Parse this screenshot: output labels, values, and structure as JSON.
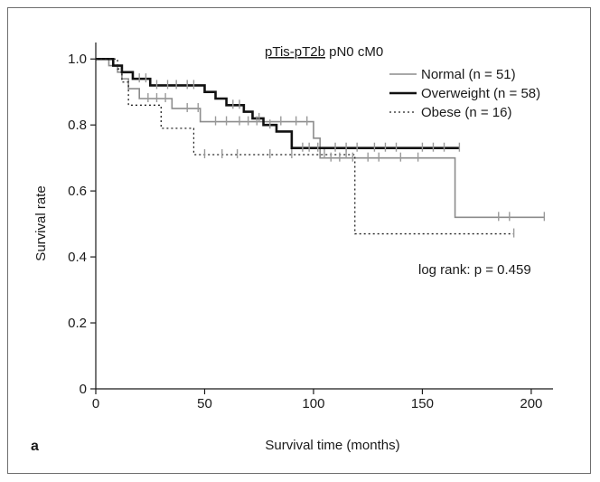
{
  "chart_data": {
    "type": "line",
    "step": true,
    "panel_label": "a",
    "title_underlined": "pTis-pT2b",
    "title_rest": " pN0 cM0",
    "xlabel": "Survival time (months)",
    "ylabel": "Survival rate",
    "xlim": [
      0,
      210
    ],
    "ylim": [
      0,
      1.05
    ],
    "x_ticks": [
      0,
      50,
      100,
      150,
      200
    ],
    "x_tick_labels": [
      "0",
      "50",
      "100",
      "150",
      "200"
    ],
    "y_ticks": [
      0,
      0.2,
      0.4,
      0.6,
      0.8,
      1.0
    ],
    "y_tick_labels": [
      "0",
      "0.2",
      "0.4",
      "0.6",
      "0.8",
      "1.0"
    ],
    "annotation": "log rank: p = 0.459",
    "grid": false,
    "legend_position": "top-right",
    "series": [
      {
        "name": "Normal (n = 51)",
        "style": "thin-gray",
        "color": "#8c8c8c",
        "x": [
          0,
          6,
          10,
          12,
          15,
          20,
          35,
          48,
          57,
          78,
          100,
          103,
          165,
          206
        ],
        "y": [
          1.0,
          0.98,
          0.96,
          0.94,
          0.91,
          0.88,
          0.85,
          0.81,
          0.81,
          0.81,
          0.76,
          0.7,
          0.52,
          0.52
        ],
        "censored": [
          24,
          28,
          32,
          42,
          47,
          55,
          60,
          66,
          70,
          74,
          85,
          92,
          97,
          108,
          112,
          118,
          125,
          130,
          140,
          148,
          185,
          190,
          206
        ]
      },
      {
        "name": "Overweight (n = 58)",
        "style": "thick-black",
        "color": "#111111",
        "x": [
          0,
          8,
          12,
          17,
          25,
          47,
          50,
          55,
          60,
          68,
          72,
          77,
          83,
          90,
          167
        ],
        "y": [
          1.0,
          0.98,
          0.96,
          0.94,
          0.92,
          0.92,
          0.9,
          0.88,
          0.86,
          0.84,
          0.82,
          0.8,
          0.78,
          0.73,
          0.73
        ],
        "censored": [
          20,
          23,
          28,
          33,
          37,
          42,
          45,
          63,
          66,
          75,
          80,
          95,
          98,
          102,
          110,
          115,
          120,
          128,
          133,
          138,
          150,
          155,
          160,
          167
        ]
      },
      {
        "name": "Obese (n = 16)",
        "style": "dotted",
        "color": "#222222",
        "x": [
          0,
          10,
          12,
          15,
          30,
          45,
          119,
          192
        ],
        "y": [
          1.0,
          0.97,
          0.93,
          0.86,
          0.79,
          0.71,
          0.47,
          0.47
        ],
        "censored": [
          50,
          58,
          65,
          80,
          90,
          105,
          115,
          192
        ]
      }
    ]
  }
}
